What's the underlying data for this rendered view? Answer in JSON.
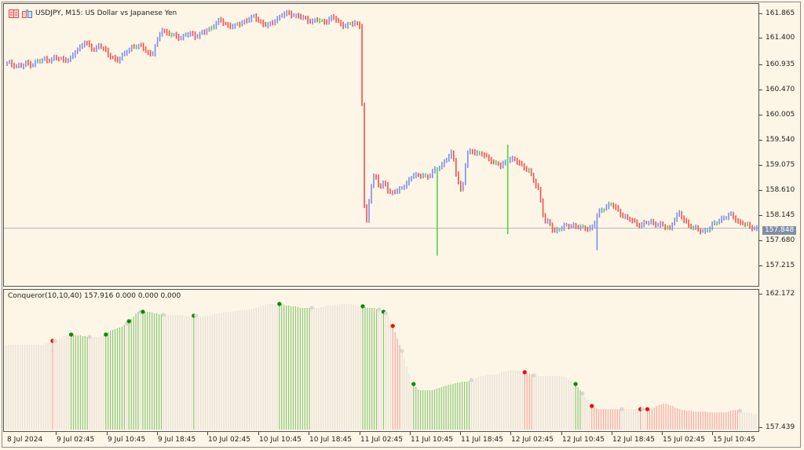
{
  "window": {
    "symbol_title": "USDJPY, M15:  US Dollar vs Japanese Yen",
    "icons": [
      "trade-panel-icon",
      "chart-properties-icon"
    ]
  },
  "price_chart": {
    "y_axis_labels": [
      "161.865",
      "161.400",
      "160.935",
      "160.470",
      "160.005",
      "159.540",
      "159.075",
      "158.610",
      "158.145",
      "157.680",
      "157.215"
    ],
    "y_axis_label_y": [
      13,
      44,
      78,
      110,
      142,
      174,
      206,
      238,
      270,
      302,
      334
    ],
    "current_price": "157.848",
    "current_price_y": 289,
    "colors": {
      "bull": "#7b8fe8",
      "bear": "#f05050",
      "doji": "#50d050",
      "price_line": "#b8b8b8",
      "background": "#fdf5e6"
    },
    "series_close": [
      160.9,
      160.88,
      160.86,
      160.84,
      160.9,
      160.88,
      160.92,
      160.95,
      160.98,
      160.96,
      161.0,
      160.97,
      160.98,
      160.96,
      161.1,
      161.2,
      161.3,
      161.2,
      161.15,
      161.25,
      161.15,
      161.05,
      161.0,
      160.95,
      161.05,
      161.15,
      161.22,
      161.2,
      161.22,
      161.1,
      161.05,
      161.3,
      161.55,
      161.45,
      161.42,
      161.4,
      161.38,
      161.42,
      161.45,
      161.4,
      161.45,
      161.48,
      161.55,
      161.62,
      161.7,
      161.62,
      161.6,
      161.58,
      161.62,
      161.68,
      161.72,
      161.75,
      161.7,
      161.62,
      161.6,
      161.65,
      161.75,
      161.8,
      161.82,
      161.8,
      161.78,
      161.74,
      161.7,
      161.68,
      161.7,
      161.66,
      161.68,
      161.75,
      161.7,
      161.62,
      161.6,
      161.62,
      161.64,
      161.6,
      157.7,
      158.5,
      158.9,
      158.6,
      158.7,
      158.5,
      158.55,
      158.55,
      158.62,
      158.75,
      158.85,
      158.8,
      158.85,
      158.8,
      158.9,
      158.96,
      159.05,
      159.15,
      159.25,
      158.8,
      158.5,
      159.2,
      159.3,
      159.25,
      159.22,
      159.18,
      159.12,
      159.05,
      159.0,
      159.08,
      159.15,
      159.1,
      159.05,
      158.98,
      158.9,
      158.7,
      158.55,
      158.0,
      157.95,
      157.8,
      157.85,
      157.88,
      157.9,
      157.92,
      157.88,
      157.85,
      157.86,
      157.88,
      158.1,
      158.2,
      158.28,
      158.3,
      158.2,
      158.12,
      158.05,
      158.0,
      157.95,
      157.92,
      157.95,
      157.97,
      157.95,
      157.92,
      157.88,
      157.85,
      158.05,
      158.12,
      158.0,
      157.92,
      157.85,
      157.82,
      157.8,
      157.85,
      157.92,
      158.0,
      158.05,
      158.08,
      158.1,
      157.98,
      157.95,
      157.9,
      157.88,
      157.85
    ]
  },
  "indicator": {
    "title": "Conqueror(10,10,40) 157.916 0.000 0.000 0.000",
    "y_axis_labels": [
      "162.172",
      "157.439"
    ],
    "colors": {
      "neutral": "#e6e0d6",
      "bull": "#8cc878",
      "bear": "#f5a8a0",
      "dot_green": "#0a8a0a",
      "dot_red": "#e81010",
      "dot_gray": "#d8d8d8"
    },
    "bar_heights": [
      108,
      108,
      108,
      108,
      108,
      108,
      108,
      108,
      108,
      108,
      108,
      108,
      108,
      108,
      108,
      108,
      108,
      110,
      110,
      111,
      113,
      113,
      114,
      116,
      118,
      119,
      120,
      120,
      121,
      122,
      120,
      120,
      120,
      119,
      119,
      118,
      118,
      118,
      118,
      118,
      118,
      119,
      120,
      121,
      124,
      126,
      127,
      128,
      129,
      130,
      131,
      133,
      135,
      138,
      141,
      144,
      148,
      150,
      150,
      150,
      150,
      150,
      150,
      149,
      148,
      148,
      147,
      147,
      146,
      146,
      146,
      146,
      146,
      146,
      146,
      146,
      146,
      145,
      145,
      145,
      145,
      145,
      145,
      144,
      144,
      144,
      144,
      145,
      146,
      147,
      147,
      147,
      148,
      148,
      149,
      150,
      150,
      150,
      150,
      151,
      151,
      152,
      152,
      152,
      152,
      153,
      153,
      154,
      155,
      156,
      157,
      158,
      159,
      160,
      160,
      160,
      160,
      160,
      160,
      160,
      159,
      158,
      158,
      157,
      157,
      157,
      156,
      155,
      155,
      155,
      155,
      155,
      155,
      155,
      155,
      155,
      156,
      156,
      157,
      158,
      158,
      158,
      159,
      159,
      160,
      160,
      160,
      160,
      160,
      160,
      159,
      158,
      157,
      157,
      157,
      156,
      155,
      155,
      155,
      155,
      153,
      153,
      152,
      150,
      148,
      145,
      140,
      132,
      124,
      116,
      108,
      100,
      90,
      80,
      72,
      64,
      58,
      54,
      51,
      50,
      50,
      50,
      50,
      50,
      50,
      51,
      52,
      53,
      54,
      55,
      56,
      57,
      57,
      58,
      59,
      60,
      60,
      61,
      61,
      61,
      62,
      63,
      64,
      66,
      67,
      68,
      68,
      69,
      70,
      70,
      70,
      70,
      70,
      72,
      73,
      74,
      74,
      75,
      76,
      76,
      75,
      75,
      75,
      74,
      73,
      72,
      71,
      70,
      69,
      69,
      68,
      68,
      68,
      68,
      68,
      68,
      68,
      68,
      68,
      68,
      68,
      67,
      66,
      64,
      62,
      60,
      58,
      54,
      50,
      46,
      42,
      38,
      34,
      30,
      28,
      27,
      26,
      26,
      26,
      26,
      26,
      26,
      26,
      26,
      26,
      26,
      26,
      26,
      26,
      26,
      26,
      26,
      26,
      26,
      26,
      26,
      26,
      26,
      26,
      26,
      28,
      30,
      31,
      32,
      33,
      33,
      32,
      31,
      30,
      28,
      27,
      26,
      25,
      25,
      24,
      24,
      24,
      23,
      23,
      23,
      23,
      23,
      23,
      22,
      22,
      22,
      22,
      22,
      22,
      22,
      22,
      22,
      23,
      24,
      25,
      25,
      25,
      24,
      23,
      22,
      22,
      22,
      21,
      20,
      20
    ],
    "bar_colors": "nnnnnnnnnnnnnnnnnnnnrnnnnnnnggggggggnnnnnnngggggggggngggggngggggggggnnnnnnnnnnnnngnnnnnnnnnnnnnnnnnnnnnnnnnnnnnnnnnnnnggggggggggggggnnnnnnnnnnnnnnnnnnnnnngggggggnngnnnrrrrnnnnngggggggggggggggggggggggggnnnnnnnnnnnnnnnnnnnnnnnrrrrnnnnnnnnnnnnnnnnnngggnnnnrrrrrrrrrrrrrnnnnnnnnrnnrrrrrrrrrrrrrrrrrrrrrrrrrrrrrrrrrrrrrrrrnnnnnnnnnnnnnnnnnnnnnnnnnnnnnnnnnggggnnngnnnnngggggnnnnnnnnnnnnnnnnnnnnnnnnnnnngnnnnggggnnrrrrrrrrrrrrrrrrrrrrrrrrrrrnnnnnnnnnnnnnrrnnnnnnnnnnnnggggnnnnnnnnnnrrrnnnnnnnnnngnnnnnnnrrnnnnnnnnnnngggnnnnnnnnrrr"
  },
  "x_axis": {
    "labels": [
      "8 Jul 2024",
      "9 Jul 02:45",
      "9 Jul 10:45",
      "9 Jul 18:45",
      "10 Jul 02:45",
      "10 Jul 10:45",
      "10 Jul 18:45",
      "11 Jul 02:45",
      "11 Jul 10:45",
      "11 Jul 18:45",
      "12 Jul 02:45",
      "12 Jul 10:45",
      "12 Jul 18:45",
      "15 Jul 02:45",
      "15 Jul 10:45"
    ],
    "label_x": [
      4,
      67,
      132,
      196,
      260,
      325,
      389,
      454,
      518,
      582,
      646,
      711,
      775,
      839,
      903
    ]
  }
}
